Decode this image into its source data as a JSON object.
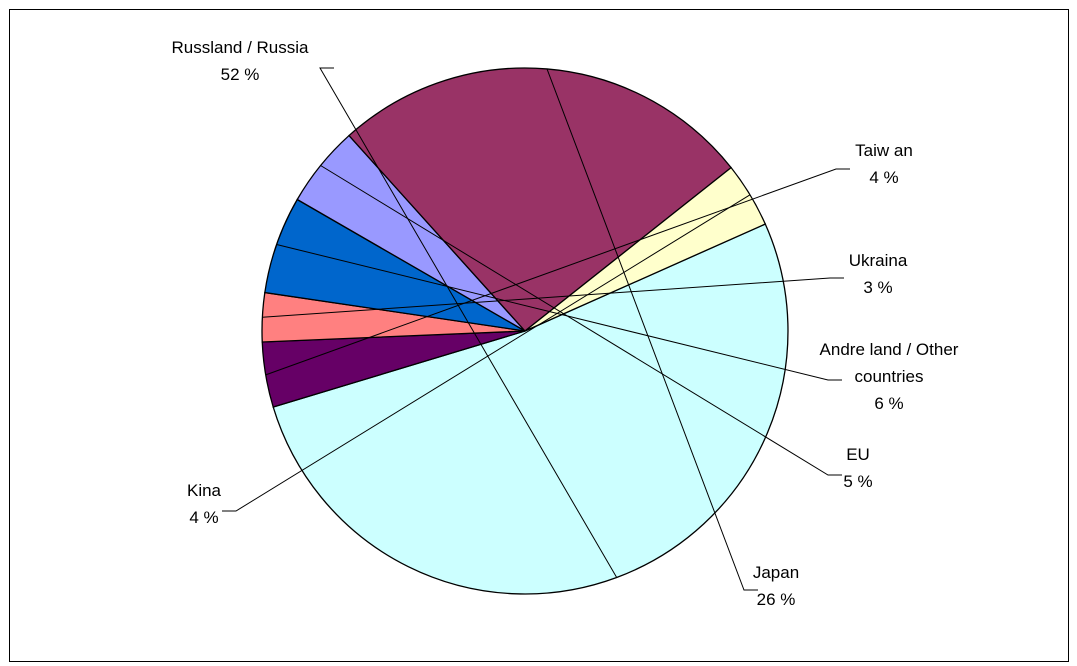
{
  "chart_data": {
    "type": "pie",
    "title": "",
    "slices": [
      {
        "label_lines": [
          "Russland / Russia"
        ],
        "value": 52,
        "value_label": "52 %",
        "color": "#CCFFFF"
      },
      {
        "label_lines": [
          "Taiw an"
        ],
        "value": 4,
        "value_label": "4 %",
        "color": "#660066"
      },
      {
        "label_lines": [
          "Ukraina"
        ],
        "value": 3,
        "value_label": "3 %",
        "color": "#FF8080"
      },
      {
        "label_lines": [
          "Andre land / Other",
          "countries"
        ],
        "value": 6,
        "value_label": "6 %",
        "color": "#0066CC"
      },
      {
        "label_lines": [
          "EU"
        ],
        "value": 5,
        "value_label": "5 %",
        "color": "#9999FF"
      },
      {
        "label_lines": [
          "Japan"
        ],
        "value": 26,
        "value_label": "26 %",
        "color": "#993366"
      },
      {
        "label_lines": [
          "Kina"
        ],
        "value": 4,
        "value_label": "4 %",
        "color": "#FFFFCC"
      }
    ],
    "legend": "none",
    "border": true
  }
}
